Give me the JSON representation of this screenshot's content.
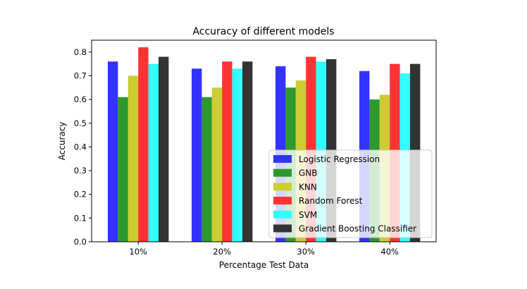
{
  "chart_data": {
    "type": "bar",
    "title": "Accuracy of different models",
    "xlabel": "Percentage Test Data",
    "ylabel": "Accuracy",
    "categories": [
      "10%",
      "20%",
      "30%",
      "40%"
    ],
    "ylim": [
      0,
      0.85
    ],
    "yticks": [
      "0.0",
      "0.1",
      "0.2",
      "0.3",
      "0.4",
      "0.5",
      "0.6",
      "0.7",
      "0.8"
    ],
    "grid": false,
    "legend_position": "lower-right",
    "series": [
      {
        "name": "Logistic Regression",
        "color": "#3333ff",
        "values": [
          0.76,
          0.73,
          0.74,
          0.72
        ]
      },
      {
        "name": "GNB",
        "color": "#2c992c",
        "values": [
          0.61,
          0.61,
          0.65,
          0.6
        ]
      },
      {
        "name": "KNN",
        "color": "#cccc33",
        "values": [
          0.7,
          0.65,
          0.68,
          0.62
        ]
      },
      {
        "name": "Random Forest",
        "color": "#ff3333",
        "values": [
          0.82,
          0.76,
          0.78,
          0.75
        ]
      },
      {
        "name": "SVM",
        "color": "#33ffff",
        "values": [
          0.75,
          0.73,
          0.76,
          0.71
        ]
      },
      {
        "name": "Gradient Boosting Classifier",
        "color": "#333333",
        "values": [
          0.78,
          0.76,
          0.77,
          0.75
        ]
      }
    ]
  }
}
